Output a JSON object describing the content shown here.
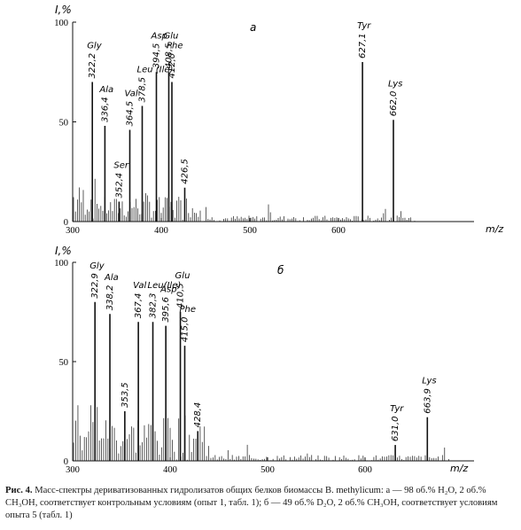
{
  "caption": {
    "label": "Рис. 4.",
    "text": "Масс-спектры дериватизованных гидролизатов общих белков биомассы B. methylicum: а — 98 об.% H₂O, 2 об.% CH₃OH, соответствует контрольным условиям (опыт 1, табл. 1); б — 49 об.% D₂O, 2 об.% CH₃OH, соответствует условиям опыта 5 (табл. 1)"
  },
  "chart_data": [
    {
      "type": "bar",
      "panel_label": "a",
      "ylabel": "I,%",
      "xlabel": "m/z",
      "xlim": [
        300,
        690
      ],
      "ylim": [
        0,
        100
      ],
      "xticks": [
        300,
        400,
        500,
        600
      ],
      "yticks": [
        0,
        50,
        100
      ],
      "grid": false,
      "peaks": [
        {
          "mz": 322.2,
          "intensity": 70,
          "label": "322,2",
          "annotation": "Gly"
        },
        {
          "mz": 336.4,
          "intensity": 48,
          "label": "336,4",
          "annotation": "Ala"
        },
        {
          "mz": 352.4,
          "intensity": 10,
          "label": "352,4",
          "annotation": "Ser"
        },
        {
          "mz": 364.5,
          "intensity": 46,
          "label": "364,5",
          "annotation": "Val"
        },
        {
          "mz": 378.5,
          "intensity": 58,
          "label": "378,5",
          "annotation": "Leu (Ile)"
        },
        {
          "mz": 394.5,
          "intensity": 75,
          "label": "394,5",
          "annotation": "Asp"
        },
        {
          "mz": 408.5,
          "intensity": 75,
          "label": "408,5",
          "annotation": "Glu"
        },
        {
          "mz": 412.0,
          "intensity": 70,
          "label": "412,0",
          "annotation": "Phe"
        },
        {
          "mz": 426.5,
          "intensity": 17,
          "label": "426,5",
          "annotation": ""
        },
        {
          "mz": 627.1,
          "intensity": 80,
          "label": "627,1",
          "annotation": "Tyr"
        },
        {
          "mz": 662.0,
          "intensity": 51,
          "label": "662,0",
          "annotation": "Lys"
        }
      ]
    },
    {
      "type": "bar",
      "panel_label": "б",
      "ylabel": "I,%",
      "xlabel": "m/z",
      "xlim": [
        300,
        690
      ],
      "ylim": [
        0,
        100
      ],
      "xticks": [
        300,
        400,
        500,
        600
      ],
      "yticks": [
        0,
        50,
        100
      ],
      "grid": false,
      "peaks": [
        {
          "mz": 322.9,
          "intensity": 80,
          "label": "322,9",
          "annotation": "Gly"
        },
        {
          "mz": 338.2,
          "intensity": 74,
          "label": "338,2",
          "annotation": "Ala"
        },
        {
          "mz": 353.5,
          "intensity": 25,
          "label": "353,5",
          "annotation": ""
        },
        {
          "mz": 367.4,
          "intensity": 70,
          "label": "367,4",
          "annotation": "Val"
        },
        {
          "mz": 382.3,
          "intensity": 70,
          "label": "382,3",
          "annotation": "Leu(Ile)"
        },
        {
          "mz": 395.6,
          "intensity": 68,
          "label": "395,6",
          "annotation": "Asp"
        },
        {
          "mz": 410.5,
          "intensity": 75,
          "label": "410,5",
          "annotation": "Glu"
        },
        {
          "mz": 415.0,
          "intensity": 58,
          "label": "415,0",
          "annotation": "Phe"
        },
        {
          "mz": 428.4,
          "intensity": 15,
          "label": "428,4",
          "annotation": ""
        },
        {
          "mz": 631.0,
          "intensity": 8,
          "label": "631,0",
          "annotation": "Tyr"
        },
        {
          "mz": 663.9,
          "intensity": 22,
          "label": "663,9",
          "annotation": "Lys"
        }
      ]
    }
  ]
}
